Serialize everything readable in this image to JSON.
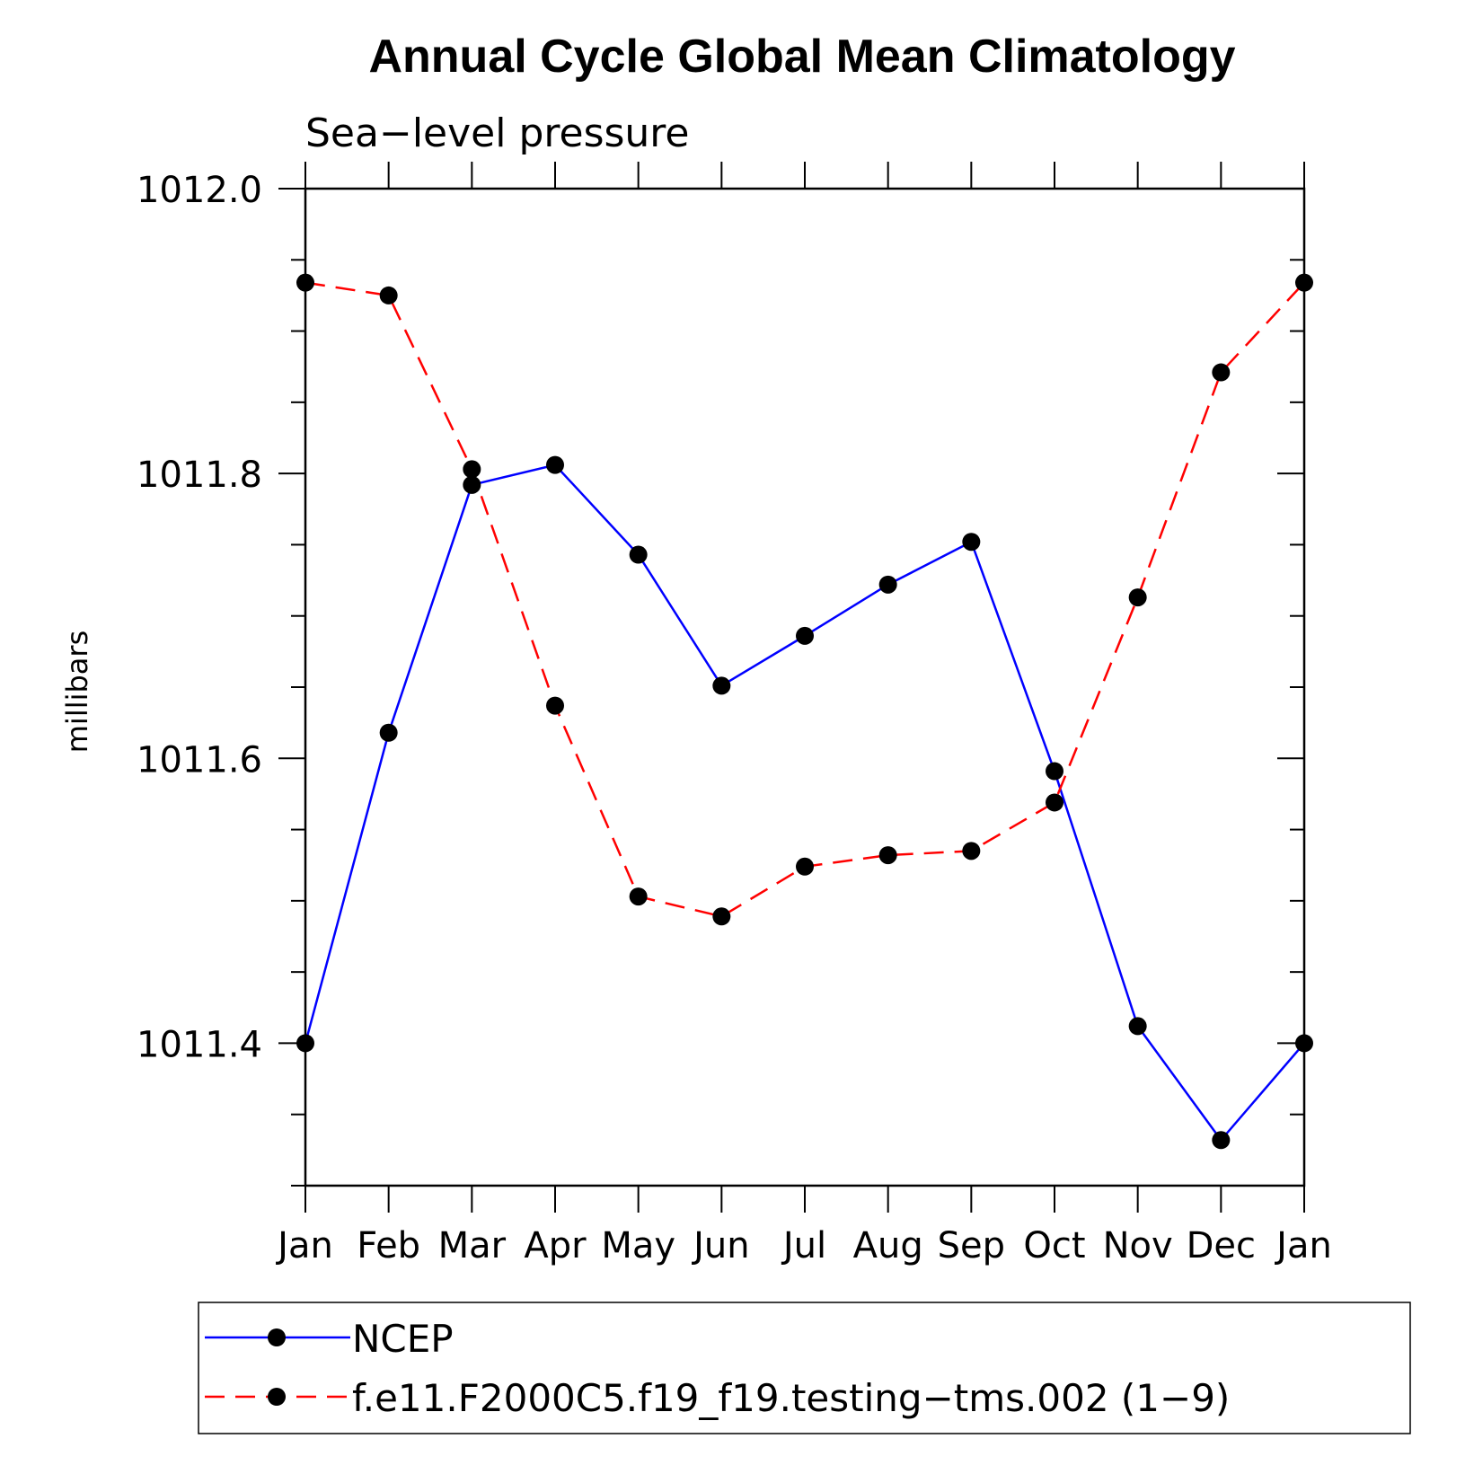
{
  "chart_data": {
    "type": "line",
    "title": "Annual Cycle Global Mean Climatology",
    "subtitle": "Sea−level pressure",
    "ylabel": "millibars",
    "xlabel": "",
    "categories": [
      "Jan",
      "Feb",
      "Mar",
      "Apr",
      "May",
      "Jun",
      "Jul",
      "Aug",
      "Sep",
      "Oct",
      "Nov",
      "Dec",
      "Jan"
    ],
    "ylim": [
      1011.3,
      1012.0
    ],
    "yticks_major": [
      1011.4,
      1011.6,
      1011.8,
      1012.0
    ],
    "ytick_labels": [
      "1011.4",
      "1011.6",
      "1011.8",
      "1012.0"
    ],
    "yticks_minor_step": 0.05,
    "grid": false,
    "legend_position": "bottom",
    "series": [
      {
        "name": "NCEP",
        "color": "#0000ff",
        "dash": "solid",
        "values": [
          1011.4,
          1011.618,
          1011.792,
          1011.806,
          1011.743,
          1011.651,
          1011.686,
          1011.722,
          1011.752,
          1011.591,
          1011.412,
          1011.332,
          1011.4
        ]
      },
      {
        "name": "f.e11.F2000C5.f19_f19.testing−tms.002 (1−9)",
        "color": "#ff0000",
        "dash": "dashed",
        "values": [
          1011.934,
          1011.925,
          1011.803,
          1011.637,
          1011.503,
          1011.489,
          1011.524,
          1011.532,
          1011.535,
          1011.569,
          1011.713,
          1011.871,
          1011.934
        ]
      }
    ]
  }
}
